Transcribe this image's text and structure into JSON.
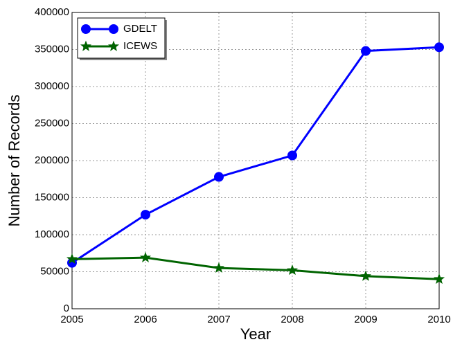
{
  "chart_data": {
    "type": "line",
    "xlabel": "Year",
    "ylabel": "Number of Records",
    "x": [
      2005,
      2006,
      2007,
      2008,
      2009,
      2010
    ],
    "series": [
      {
        "name": "GDELT",
        "color": "#0000ff",
        "marker": "circle",
        "values": [
          62000,
          127000,
          178000,
          207000,
          348000,
          353000
        ]
      },
      {
        "name": "ICEWS",
        "color": "#006400",
        "marker": "star",
        "values": [
          67000,
          69000,
          55000,
          52000,
          44000,
          40000
        ]
      }
    ],
    "xlim": [
      2005,
      2010
    ],
    "xticks": [
      2005,
      2006,
      2007,
      2008,
      2009,
      2010
    ],
    "ylim": [
      0,
      400000
    ],
    "yticks": [
      0,
      50000,
      100000,
      150000,
      200000,
      250000,
      300000,
      350000,
      400000
    ],
    "grid": true,
    "legend": "upper left"
  }
}
